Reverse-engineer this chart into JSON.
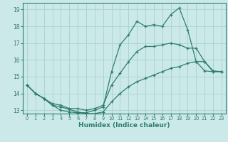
{
  "title": "",
  "xlabel": "Humidex (Indice chaleur)",
  "ylabel": "",
  "background_color": "#cce9e9",
  "grid_color": "#aad4d4",
  "line_color": "#2d7d6e",
  "xlim": [
    -0.5,
    23.5
  ],
  "ylim": [
    12.8,
    19.4
  ],
  "xticks": [
    0,
    1,
    2,
    3,
    4,
    5,
    6,
    7,
    8,
    9,
    10,
    11,
    12,
    13,
    14,
    15,
    16,
    17,
    18,
    19,
    20,
    21,
    22,
    23
  ],
  "yticks": [
    13,
    14,
    15,
    16,
    17,
    18,
    19
  ],
  "hours": [
    0,
    1,
    2,
    3,
    4,
    5,
    6,
    7,
    8,
    9,
    10,
    11,
    12,
    13,
    14,
    15,
    16,
    17,
    18,
    19,
    20,
    21,
    22,
    23
  ],
  "line_max": [
    14.5,
    14.0,
    13.7,
    13.3,
    13.0,
    12.9,
    12.85,
    12.85,
    13.0,
    13.2,
    15.3,
    16.9,
    17.5,
    18.3,
    18.0,
    18.1,
    18.0,
    18.7,
    19.1,
    17.8,
    15.9,
    15.35,
    15.3,
    15.3
  ],
  "line_mean": [
    14.5,
    14.0,
    13.7,
    13.4,
    13.3,
    13.1,
    13.1,
    13.0,
    13.1,
    13.3,
    14.5,
    15.2,
    15.9,
    16.5,
    16.8,
    16.8,
    16.9,
    17.0,
    16.9,
    16.7,
    16.7,
    15.9,
    15.3,
    15.3
  ],
  "line_min": [
    14.5,
    14.0,
    13.7,
    13.3,
    13.2,
    13.05,
    12.9,
    12.8,
    12.8,
    12.9,
    13.5,
    14.0,
    14.4,
    14.7,
    14.9,
    15.1,
    15.3,
    15.5,
    15.6,
    15.8,
    15.9,
    15.9,
    15.35,
    15.3
  ]
}
